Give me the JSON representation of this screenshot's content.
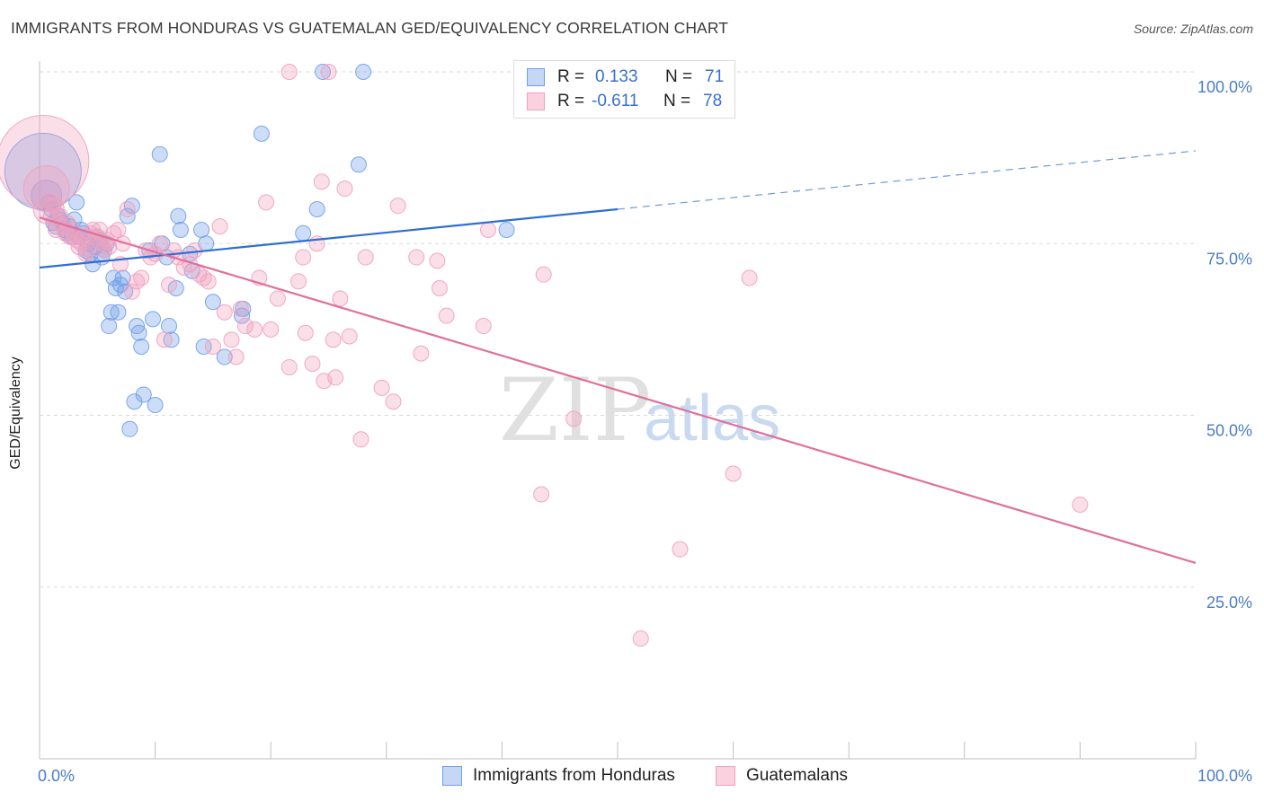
{
  "title": "IMMIGRANTS FROM HONDURAS VS GUATEMALAN GED/EQUIVALENCY CORRELATION CHART",
  "source": "Source: ZipAtlas.com",
  "watermark": {
    "zip": "ZIP",
    "atlas": "atlas"
  },
  "legend_top": {
    "rows": [
      {
        "r_label": "R =",
        "r_value": "0.133",
        "n_label": "N =",
        "n_value": "71"
      },
      {
        "r_label": "R =",
        "r_value": "-0.611",
        "n_label": "N =",
        "n_value": "78"
      }
    ]
  },
  "chart_data": {
    "type": "scatter",
    "title": "IMMIGRANTS FROM HONDURAS VS GUATEMALAN GED/EQUIVALENCY CORRELATION CHART",
    "xlabel": "",
    "ylabel": "GED/Equivalency",
    "xlim": [
      0,
      100
    ],
    "ylim": [
      0,
      102
    ],
    "x_tick_labels": [
      "0.0%",
      "100.0%"
    ],
    "y_ticks": [
      25,
      50,
      75,
      100
    ],
    "y_tick_labels": [
      "25.0%",
      "50.0%",
      "75.0%",
      "100.0%"
    ],
    "grid": true,
    "legend_position": "bottom-center",
    "colors": {
      "honduras": "#6f9ee8",
      "guatemalans": "#f0a1be",
      "honduras_line": "#2f6fd1",
      "guatemalans_line": "#e0709a"
    },
    "series": [
      {
        "name": "Immigrants from Honduras",
        "r": 0.133,
        "n": 71,
        "trend": {
          "x0": 0,
          "y0": 71.5,
          "x1": 50,
          "y1": 80.0,
          "x_dash_end": 100,
          "y_dash_end": 88.5
        },
        "points": [
          [
            0.3,
            85.5,
            5
          ],
          [
            0.6,
            82.0,
            2
          ],
          [
            0.8,
            81.0,
            1
          ],
          [
            1.0,
            80.0,
            1
          ],
          [
            1.2,
            78.0,
            1
          ],
          [
            1.4,
            77.5,
            1
          ],
          [
            1.6,
            79.0,
            1
          ],
          [
            1.8,
            78.5,
            1
          ],
          [
            2.0,
            78.0,
            1
          ],
          [
            2.2,
            77.0,
            1
          ],
          [
            2.4,
            76.5,
            1
          ],
          [
            2.6,
            77.5,
            1
          ],
          [
            2.8,
            76.0,
            1
          ],
          [
            3.0,
            78.5,
            1
          ],
          [
            3.2,
            81.0,
            1
          ],
          [
            3.4,
            76.0,
            1
          ],
          [
            3.6,
            77.0,
            1
          ],
          [
            3.8,
            76.5,
            1
          ],
          [
            4.0,
            74.0,
            1
          ],
          [
            4.2,
            75.0,
            1
          ],
          [
            4.4,
            73.5,
            1
          ],
          [
            4.6,
            72.0,
            1
          ],
          [
            4.8,
            74.5,
            1
          ],
          [
            5.0,
            76.0,
            1
          ],
          [
            5.2,
            75.5,
            1
          ],
          [
            5.4,
            73.0,
            1
          ],
          [
            5.6,
            74.0,
            1
          ],
          [
            5.8,
            75.0,
            1
          ],
          [
            6.0,
            63.0,
            1
          ],
          [
            6.2,
            65.0,
            1
          ],
          [
            6.4,
            70.0,
            1
          ],
          [
            6.6,
            68.5,
            1
          ],
          [
            6.8,
            65.0,
            1
          ],
          [
            7.0,
            69.0,
            1
          ],
          [
            7.2,
            70.0,
            1
          ],
          [
            7.4,
            68.0,
            1
          ],
          [
            7.6,
            79.0,
            1
          ],
          [
            7.8,
            48.0,
            1
          ],
          [
            8.0,
            80.5,
            1
          ],
          [
            8.2,
            52.0,
            1
          ],
          [
            8.4,
            63.0,
            1
          ],
          [
            8.6,
            62.0,
            1
          ],
          [
            8.8,
            60.0,
            1
          ],
          [
            9.0,
            53.0,
            1
          ],
          [
            9.5,
            74.0,
            1
          ],
          [
            9.8,
            64.0,
            1
          ],
          [
            10.0,
            51.5,
            1
          ],
          [
            10.4,
            88.0,
            1
          ],
          [
            10.6,
            75.0,
            1
          ],
          [
            11.0,
            73.0,
            1
          ],
          [
            11.2,
            63.0,
            1
          ],
          [
            11.4,
            61.0,
            1
          ],
          [
            11.8,
            68.5,
            1
          ],
          [
            12.0,
            79.0,
            1
          ],
          [
            12.2,
            77.0,
            1
          ],
          [
            13.0,
            73.5,
            1
          ],
          [
            13.2,
            71.0,
            1
          ],
          [
            14.0,
            77.0,
            1
          ],
          [
            14.4,
            75.0,
            1
          ],
          [
            14.2,
            60.0,
            1
          ],
          [
            15.0,
            66.5,
            1
          ],
          [
            16.0,
            58.5,
            1
          ],
          [
            17.5,
            64.5,
            1
          ],
          [
            17.6,
            65.5,
            1
          ],
          [
            19.2,
            91.0,
            1
          ],
          [
            22.8,
            76.5,
            1
          ],
          [
            24.0,
            80.0,
            1
          ],
          [
            27.6,
            86.5,
            1
          ],
          [
            24.5,
            100.0,
            1
          ],
          [
            28.0,
            100.0,
            1
          ],
          [
            40.4,
            77.0,
            1
          ]
        ]
      },
      {
        "name": "Guatemalans",
        "r": -0.611,
        "n": 78,
        "trend": {
          "x0": 0,
          "y0": 78.8,
          "x1": 100,
          "y1": 28.5
        },
        "points": [
          [
            0.3,
            87.0,
            6
          ],
          [
            0.6,
            83.0,
            3
          ],
          [
            0.8,
            80.0,
            2
          ],
          [
            1.0,
            79.0,
            1
          ],
          [
            1.2,
            80.5,
            1
          ],
          [
            1.4,
            77.0,
            1
          ],
          [
            1.6,
            78.0,
            1
          ],
          [
            1.8,
            79.0,
            1
          ],
          [
            2.0,
            77.5,
            1
          ],
          [
            2.2,
            76.5,
            1
          ],
          [
            2.4,
            78.0,
            1
          ],
          [
            2.6,
            76.0,
            1
          ],
          [
            2.8,
            77.0,
            1
          ],
          [
            3.0,
            76.0,
            1
          ],
          [
            3.2,
            75.5,
            1
          ],
          [
            3.4,
            74.5,
            1
          ],
          [
            3.6,
            75.0,
            1
          ],
          [
            3.8,
            76.0,
            1
          ],
          [
            4.0,
            73.5,
            1
          ],
          [
            4.2,
            74.0,
            1
          ],
          [
            4.4,
            76.5,
            1
          ],
          [
            4.6,
            77.0,
            1
          ],
          [
            4.8,
            75.5,
            1
          ],
          [
            5.0,
            76.0,
            1
          ],
          [
            5.2,
            77.0,
            1
          ],
          [
            5.4,
            75.0,
            1
          ],
          [
            5.6,
            74.0,
            1
          ],
          [
            5.8,
            75.5,
            1
          ],
          [
            6.0,
            74.5,
            1
          ],
          [
            6.4,
            76.5,
            1
          ],
          [
            6.8,
            77.0,
            1
          ],
          [
            7.0,
            72.0,
            1
          ],
          [
            7.2,
            75.0,
            1
          ],
          [
            7.6,
            80.0,
            1
          ],
          [
            8.0,
            68.0,
            1
          ],
          [
            8.4,
            69.5,
            1
          ],
          [
            8.8,
            70.0,
            1
          ],
          [
            9.2,
            74.0,
            1
          ],
          [
            9.6,
            73.0,
            1
          ],
          [
            10.0,
            73.5,
            1
          ],
          [
            10.4,
            75.0,
            1
          ],
          [
            10.8,
            61.0,
            1
          ],
          [
            11.2,
            69.0,
            1
          ],
          [
            11.6,
            74.0,
            1
          ],
          [
            12.0,
            73.0,
            1
          ],
          [
            12.5,
            71.5,
            1
          ],
          [
            13.0,
            72.0,
            1
          ],
          [
            13.4,
            74.0,
            1
          ],
          [
            13.8,
            70.5,
            1
          ],
          [
            14.2,
            70.0,
            1
          ],
          [
            14.6,
            69.5,
            1
          ],
          [
            15.0,
            60.0,
            1
          ],
          [
            15.6,
            77.5,
            1
          ],
          [
            16.0,
            65.0,
            1
          ],
          [
            16.6,
            61.0,
            1
          ],
          [
            17.0,
            58.5,
            1
          ],
          [
            17.4,
            65.5,
            1
          ],
          [
            17.8,
            63.0,
            1
          ],
          [
            18.6,
            62.5,
            1
          ],
          [
            19.0,
            70.0,
            1
          ],
          [
            19.6,
            81.0,
            1
          ],
          [
            20.0,
            62.5,
            1
          ],
          [
            20.6,
            67.0,
            1
          ],
          [
            21.6,
            57.0,
            1
          ],
          [
            21.6,
            100.0,
            1
          ],
          [
            22.4,
            69.5,
            1
          ],
          [
            22.8,
            73.0,
            1
          ],
          [
            23.0,
            62.0,
            1
          ],
          [
            23.6,
            57.5,
            1
          ],
          [
            24.0,
            75.0,
            1
          ],
          [
            24.4,
            84.0,
            1
          ],
          [
            24.6,
            55.0,
            1
          ],
          [
            25.0,
            100.0,
            1
          ],
          [
            25.4,
            61.0,
            1
          ],
          [
            25.6,
            55.5,
            1
          ],
          [
            26.0,
            67.0,
            1
          ],
          [
            26.4,
            83.0,
            1
          ],
          [
            26.8,
            61.5,
            1
          ],
          [
            27.8,
            46.5,
            1
          ],
          [
            28.2,
            73.0,
            1
          ],
          [
            29.6,
            54.0,
            1
          ],
          [
            30.6,
            52.0,
            1
          ],
          [
            31.0,
            80.5,
            1
          ],
          [
            32.6,
            73.0,
            1
          ],
          [
            33.0,
            59.0,
            1
          ],
          [
            34.4,
            72.5,
            1
          ],
          [
            34.6,
            68.5,
            1
          ],
          [
            35.2,
            64.5,
            1
          ],
          [
            38.4,
            63.0,
            1
          ],
          [
            38.8,
            77.0,
            1
          ],
          [
            43.4,
            38.5,
            1
          ],
          [
            43.6,
            70.5,
            1
          ],
          [
            46.2,
            49.5,
            1
          ],
          [
            52.0,
            17.5,
            1
          ],
          [
            55.4,
            30.5,
            1
          ],
          [
            60.0,
            41.5,
            1
          ],
          [
            61.4,
            70.0,
            1
          ],
          [
            90.0,
            37.0,
            1
          ]
        ]
      }
    ]
  },
  "bottom_legend": {
    "items": [
      {
        "label": "Immigrants from Honduras"
      },
      {
        "label": "Guatemalans"
      }
    ]
  }
}
